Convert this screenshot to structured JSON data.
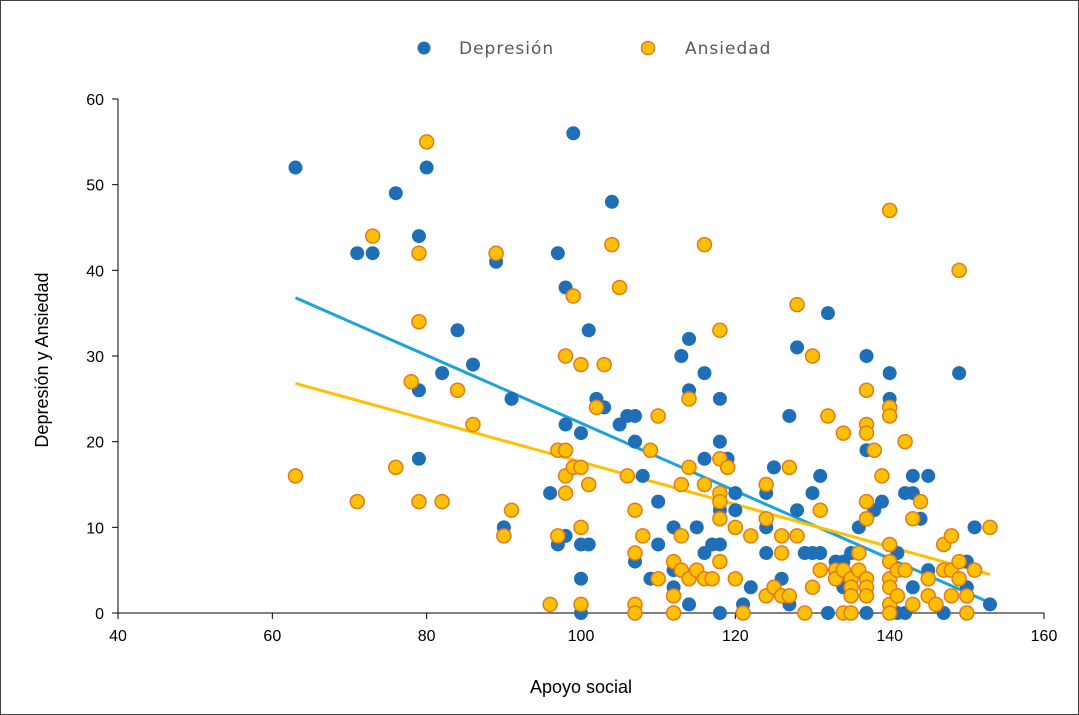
{
  "chart_data": {
    "type": "scatter",
    "xlabel": "Apoyo social",
    "ylabel": "Depresión y Ansiedad",
    "xlim": [
      40,
      160
    ],
    "ylim": [
      0,
      60
    ],
    "xticks": [
      40,
      60,
      80,
      100,
      120,
      140,
      160
    ],
    "yticks": [
      0,
      10,
      20,
      30,
      40,
      50,
      60
    ],
    "grid": false,
    "legend_position": "top",
    "series": [
      {
        "name": "Depresión",
        "color": "#1F6FB8",
        "points": [
          [
            63,
            52
          ],
          [
            71,
            42
          ],
          [
            73,
            42
          ],
          [
            76,
            49
          ],
          [
            79,
            44
          ],
          [
            79,
            26
          ],
          [
            79,
            18
          ],
          [
            80,
            52
          ],
          [
            82,
            28
          ],
          [
            84,
            33
          ],
          [
            86,
            29
          ],
          [
            89,
            41
          ],
          [
            90,
            10
          ],
          [
            91,
            25
          ],
          [
            96,
            14
          ],
          [
            97,
            42
          ],
          [
            97,
            8
          ],
          [
            98,
            38
          ],
          [
            98,
            22
          ],
          [
            98,
            9
          ],
          [
            99,
            56
          ],
          [
            100,
            21
          ],
          [
            100,
            8
          ],
          [
            100,
            4
          ],
          [
            100,
            0
          ],
          [
            101,
            33
          ],
          [
            101,
            8
          ],
          [
            102,
            25
          ],
          [
            103,
            24
          ],
          [
            104,
            48
          ],
          [
            105,
            22
          ],
          [
            106,
            23
          ],
          [
            107,
            23
          ],
          [
            107,
            20
          ],
          [
            107,
            6
          ],
          [
            108,
            16
          ],
          [
            109,
            4
          ],
          [
            110,
            13
          ],
          [
            110,
            8
          ],
          [
            112,
            10
          ],
          [
            112,
            5
          ],
          [
            112,
            3
          ],
          [
            113,
            30
          ],
          [
            113,
            15
          ],
          [
            114,
            32
          ],
          [
            114,
            26
          ],
          [
            114,
            1
          ],
          [
            115,
            10
          ],
          [
            116,
            28
          ],
          [
            116,
            18
          ],
          [
            116,
            7
          ],
          [
            117,
            8
          ],
          [
            118,
            25
          ],
          [
            118,
            20
          ],
          [
            118,
            12
          ],
          [
            118,
            8
          ],
          [
            118,
            0
          ],
          [
            119,
            18
          ],
          [
            120,
            14
          ],
          [
            120,
            12
          ],
          [
            121,
            1
          ],
          [
            122,
            3
          ],
          [
            124,
            14
          ],
          [
            124,
            10
          ],
          [
            124,
            7
          ],
          [
            125,
            17
          ],
          [
            126,
            4
          ],
          [
            127,
            23
          ],
          [
            127,
            1
          ],
          [
            128,
            31
          ],
          [
            128,
            12
          ],
          [
            129,
            7
          ],
          [
            130,
            14
          ],
          [
            130,
            7
          ],
          [
            131,
            16
          ],
          [
            131,
            7
          ],
          [
            132,
            35
          ],
          [
            132,
            0
          ],
          [
            133,
            6
          ],
          [
            134,
            6
          ],
          [
            134,
            3
          ],
          [
            135,
            7
          ],
          [
            135,
            0
          ],
          [
            136,
            10
          ],
          [
            136,
            5
          ],
          [
            137,
            30
          ],
          [
            137,
            21
          ],
          [
            137,
            19
          ],
          [
            137,
            0
          ],
          [
            138,
            12
          ],
          [
            139,
            13
          ],
          [
            140,
            28
          ],
          [
            140,
            25
          ],
          [
            140,
            8
          ],
          [
            140,
            6
          ],
          [
            140,
            3
          ],
          [
            141,
            7
          ],
          [
            141,
            5
          ],
          [
            141,
            0
          ],
          [
            142,
            14
          ],
          [
            142,
            0
          ],
          [
            143,
            16
          ],
          [
            143,
            14
          ],
          [
            143,
            3
          ],
          [
            144,
            11
          ],
          [
            145,
            16
          ],
          [
            145,
            5
          ],
          [
            147,
            0
          ],
          [
            148,
            5
          ],
          [
            149,
            28
          ],
          [
            149,
            6
          ],
          [
            150,
            6
          ],
          [
            150,
            3
          ],
          [
            151,
            10
          ],
          [
            153,
            1
          ]
        ],
        "trend": [
          [
            63,
            36.8
          ],
          [
            153,
            1.2
          ]
        ],
        "trend_color": "#1AA3DC"
      },
      {
        "name": "Ansiedad",
        "color": "#FFC000",
        "edge": "#E07A1F",
        "points": [
          [
            63,
            16
          ],
          [
            71,
            13
          ],
          [
            73,
            44
          ],
          [
            76,
            17
          ],
          [
            78,
            27
          ],
          [
            79,
            42
          ],
          [
            79,
            34
          ],
          [
            79,
            13
          ],
          [
            80,
            55
          ],
          [
            82,
            13
          ],
          [
            84,
            26
          ],
          [
            86,
            22
          ],
          [
            89,
            42
          ],
          [
            90,
            9
          ],
          [
            91,
            12
          ],
          [
            96,
            1
          ],
          [
            97,
            19
          ],
          [
            97,
            9
          ],
          [
            98,
            30
          ],
          [
            98,
            19
          ],
          [
            98,
            16
          ],
          [
            98,
            14
          ],
          [
            99,
            37
          ],
          [
            99,
            17
          ],
          [
            100,
            29
          ],
          [
            100,
            17
          ],
          [
            100,
            10
          ],
          [
            100,
            1
          ],
          [
            101,
            15
          ],
          [
            102,
            24
          ],
          [
            103,
            29
          ],
          [
            104,
            43
          ],
          [
            105,
            38
          ],
          [
            106,
            16
          ],
          [
            107,
            12
          ],
          [
            107,
            7
          ],
          [
            107,
            1
          ],
          [
            107,
            0
          ],
          [
            108,
            9
          ],
          [
            109,
            19
          ],
          [
            110,
            23
          ],
          [
            110,
            4
          ],
          [
            112,
            6
          ],
          [
            112,
            2
          ],
          [
            112,
            0
          ],
          [
            113,
            15
          ],
          [
            113,
            9
          ],
          [
            113,
            5
          ],
          [
            114,
            25
          ],
          [
            114,
            17
          ],
          [
            114,
            4
          ],
          [
            115,
            5
          ],
          [
            116,
            43
          ],
          [
            116,
            15
          ],
          [
            116,
            4
          ],
          [
            117,
            4
          ],
          [
            118,
            33
          ],
          [
            118,
            18
          ],
          [
            118,
            14
          ],
          [
            118,
            13
          ],
          [
            118,
            11
          ],
          [
            118,
            6
          ],
          [
            119,
            17
          ],
          [
            120,
            10
          ],
          [
            120,
            4
          ],
          [
            121,
            0
          ],
          [
            122,
            9
          ],
          [
            124,
            15
          ],
          [
            124,
            11
          ],
          [
            124,
            2
          ],
          [
            125,
            3
          ],
          [
            126,
            9
          ],
          [
            126,
            7
          ],
          [
            126,
            2
          ],
          [
            127,
            17
          ],
          [
            127,
            2
          ],
          [
            128,
            36
          ],
          [
            128,
            9
          ],
          [
            129,
            0
          ],
          [
            130,
            30
          ],
          [
            130,
            3
          ],
          [
            131,
            12
          ],
          [
            131,
            5
          ],
          [
            132,
            23
          ],
          [
            133,
            5
          ],
          [
            133,
            4
          ],
          [
            134,
            21
          ],
          [
            134,
            5
          ],
          [
            134,
            0
          ],
          [
            135,
            4
          ],
          [
            135,
            3
          ],
          [
            135,
            2
          ],
          [
            135,
            0
          ],
          [
            136,
            7
          ],
          [
            136,
            5
          ],
          [
            137,
            26
          ],
          [
            137,
            22
          ],
          [
            137,
            21
          ],
          [
            137,
            13
          ],
          [
            137,
            11
          ],
          [
            137,
            4
          ],
          [
            137,
            3
          ],
          [
            137,
            2
          ],
          [
            138,
            19
          ],
          [
            139,
            16
          ],
          [
            140,
            47
          ],
          [
            140,
            24
          ],
          [
            140,
            23
          ],
          [
            140,
            8
          ],
          [
            140,
            6
          ],
          [
            140,
            4
          ],
          [
            140,
            3
          ],
          [
            140,
            1
          ],
          [
            140,
            0
          ],
          [
            141,
            5
          ],
          [
            141,
            2
          ],
          [
            142,
            20
          ],
          [
            142,
            5
          ],
          [
            143,
            11
          ],
          [
            143,
            1
          ],
          [
            144,
            13
          ],
          [
            145,
            4
          ],
          [
            145,
            2
          ],
          [
            146,
            1
          ],
          [
            147,
            8
          ],
          [
            147,
            5
          ],
          [
            148,
            9
          ],
          [
            148,
            5
          ],
          [
            148,
            2
          ],
          [
            149,
            40
          ],
          [
            149,
            6
          ],
          [
            149,
            4
          ],
          [
            150,
            2
          ],
          [
            150,
            0
          ],
          [
            151,
            5
          ],
          [
            153,
            10
          ]
        ],
        "trend": [
          [
            63,
            26.8
          ],
          [
            153,
            4.5
          ]
        ],
        "trend_color": "#FFC000"
      }
    ]
  }
}
